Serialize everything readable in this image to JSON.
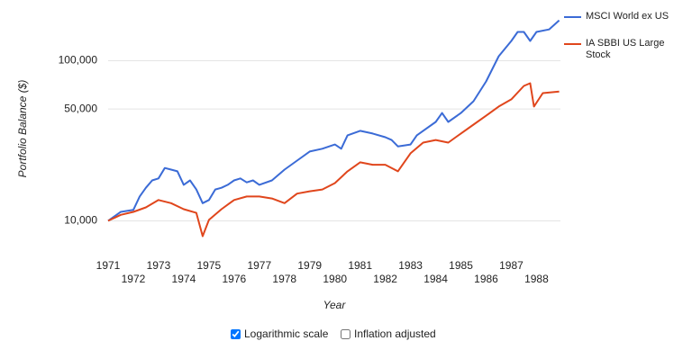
{
  "chart_data": {
    "type": "line",
    "x_label": "Year",
    "y_label": "Portfolio Balance ($)",
    "log_scale": true,
    "grid": true,
    "legend": "right",
    "xlim": [
      1971,
      1988.95
    ],
    "xticks": [
      1971,
      1972,
      1973,
      1974,
      1975,
      1976,
      1977,
      1978,
      1979,
      1980,
      1981,
      1982,
      1983,
      1984,
      1985,
      1986,
      1987,
      1988
    ],
    "ylim": [
      7000,
      200000
    ],
    "yticks": [
      {
        "value": 10000,
        "label": "10,000"
      },
      {
        "value": 50000,
        "label": "50,000"
      },
      {
        "value": 100000,
        "label": "100,000"
      }
    ],
    "series": [
      {
        "name": "MSCI World ex US",
        "color": "#3b6bd6",
        "x": [
          1971,
          1971.5,
          1972,
          1972.25,
          1972.5,
          1972.75,
          1973,
          1973.25,
          1973.5,
          1973.75,
          1974,
          1974.25,
          1974.5,
          1974.75,
          1975,
          1975.25,
          1975.5,
          1975.75,
          1976,
          1976.25,
          1976.5,
          1976.75,
          1977,
          1977.5,
          1978,
          1978.5,
          1979,
          1979.5,
          1980,
          1980.25,
          1980.5,
          1981,
          1981.5,
          1982,
          1982.25,
          1982.5,
          1983,
          1983.25,
          1983.5,
          1984,
          1984.25,
          1984.5,
          1985,
          1985.5,
          1986,
          1986.5,
          1987,
          1987.25,
          1987.5,
          1987.75,
          1988,
          1988.5,
          1988.9
        ],
        "values": [
          10000,
          11380,
          11700,
          14200,
          16100,
          17900,
          18400,
          21400,
          20900,
          20400,
          16800,
          17900,
          15700,
          12900,
          13500,
          15700,
          16100,
          16800,
          17900,
          18400,
          17400,
          17900,
          16800,
          17900,
          20900,
          23800,
          27100,
          28200,
          30000,
          28200,
          34200,
          36500,
          35100,
          33300,
          32000,
          29200,
          30000,
          34200,
          36500,
          41500,
          47200,
          41500,
          47200,
          55900,
          74300,
          106700,
          133000,
          151400,
          151400,
          133000,
          151400,
          157000,
          179000
        ]
      },
      {
        "name": "IA SBBI US Large Stock",
        "color": "#e0461c",
        "x": [
          1971,
          1971.5,
          1972,
          1972.5,
          1973,
          1973.5,
          1974,
          1974.5,
          1974.75,
          1975,
          1975.5,
          1976,
          1976.5,
          1977,
          1977.5,
          1978,
          1978.5,
          1979,
          1979.5,
          1980,
          1980.5,
          1981,
          1981.5,
          1982,
          1982.5,
          1983,
          1983.5,
          1984,
          1984.5,
          1985,
          1985.5,
          1986,
          1986.5,
          1987,
          1987.5,
          1987.75,
          1987.9,
          1988.25,
          1988.9
        ],
        "values": [
          10000,
          10900,
          11380,
          12140,
          13500,
          12900,
          11830,
          11220,
          8020,
          10130,
          11830,
          13500,
          14200,
          14200,
          13800,
          12900,
          14800,
          15300,
          15700,
          17200,
          20400,
          23200,
          22400,
          22400,
          20400,
          26400,
          30800,
          32000,
          30800,
          35100,
          39900,
          45400,
          51800,
          57400,
          69600,
          72400,
          51800,
          62800,
          64300
        ]
      }
    ]
  },
  "controls": [
    {
      "label": "Logarithmic scale",
      "checked": true
    },
    {
      "label": "Inflation adjusted",
      "checked": false
    }
  ]
}
